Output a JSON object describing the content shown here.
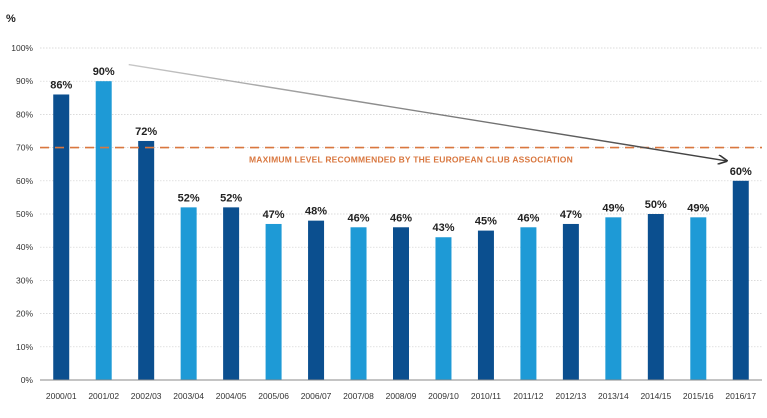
{
  "chart_data": {
    "type": "bar",
    "y_unit_label": "%",
    "categories": [
      "2000/01",
      "2001/02",
      "2002/03",
      "2003/04",
      "2004/05",
      "2005/06",
      "2006/07",
      "2007/08",
      "2008/09",
      "2009/10",
      "2010/11",
      "2011/12",
      "2012/13",
      "2013/14",
      "2014/15",
      "2015/16",
      "2016/17"
    ],
    "values": [
      86,
      90,
      72,
      52,
      52,
      47,
      48,
      46,
      46,
      43,
      45,
      46,
      47,
      49,
      50,
      49,
      60
    ],
    "data_labels": [
      "86%",
      "90%",
      "72%",
      "52%",
      "52%",
      "47%",
      "48%",
      "46%",
      "46%",
      "43%",
      "45%",
      "46%",
      "47%",
      "49%",
      "50%",
      "49%",
      "60%"
    ],
    "bar_colors": [
      "#0b4f8f",
      "#1e9ad6",
      "#0b4f8f",
      "#1e9ad6",
      "#0b4f8f",
      "#1e9ad6",
      "#0b4f8f",
      "#1e9ad6",
      "#0b4f8f",
      "#1e9ad6",
      "#0b4f8f",
      "#1e9ad6",
      "#0b4f8f",
      "#1e9ad6",
      "#0b4f8f",
      "#1e9ad6",
      "#0b4f8f"
    ],
    "y_ticks": [
      0,
      10,
      20,
      30,
      40,
      50,
      60,
      70,
      80,
      90,
      100
    ],
    "y_tick_labels": [
      "0%",
      "10%",
      "20%",
      "30%",
      "40%",
      "50%",
      "60%",
      "70%",
      "80%",
      "90%",
      "100%"
    ],
    "ylim": [
      0,
      100
    ],
    "grid": true,
    "reference_line": {
      "value": 70,
      "label": "MAXIMUM LEVEL RECOMMENDED BY THE EUROPEAN CLUB ASSOCIATION",
      "color": "#d9773f",
      "style": "dashed"
    },
    "trend_arrow": {
      "from": {
        "category": "2001/02",
        "value": 95
      },
      "to": {
        "category": "2016/17",
        "value": 66
      },
      "color": "#444444"
    }
  }
}
